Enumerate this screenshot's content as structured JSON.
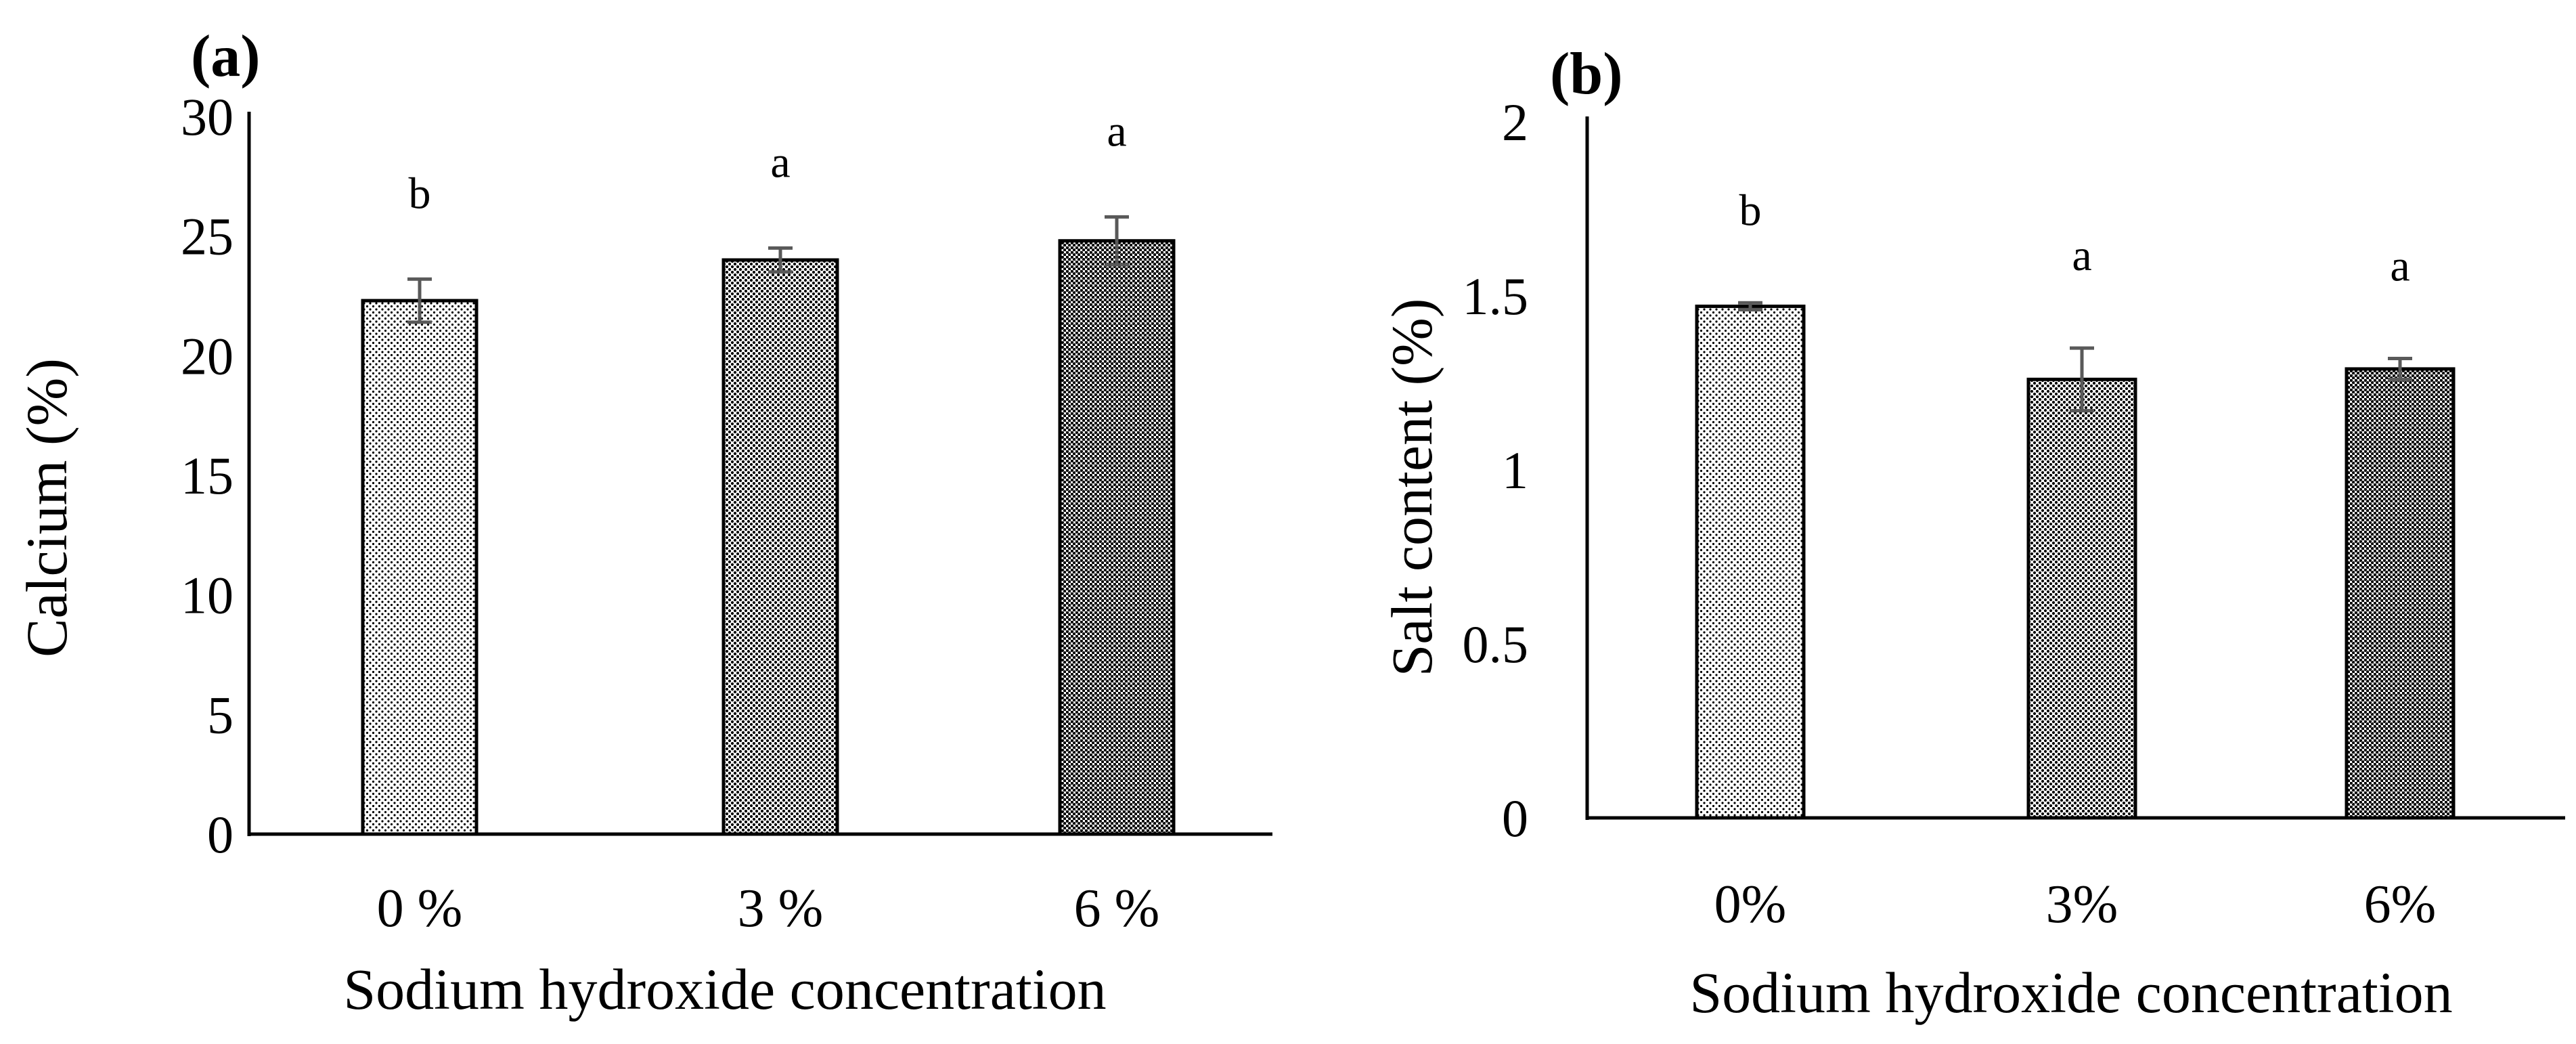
{
  "chart_data": [
    {
      "type": "bar",
      "panel_label": "(a)",
      "categories": [
        "0 %",
        "3 %",
        "6 %"
      ],
      "values": [
        22.3,
        24.0,
        24.8
      ],
      "errors": [
        0.9,
        0.5,
        1.0
      ],
      "significance": [
        "b",
        "a",
        "a"
      ],
      "xlabel": "Sodium hydroxide concentration",
      "ylabel": "Calcium (%)",
      "ylim": [
        0,
        30
      ],
      "yticks": [
        "0",
        "5",
        "10",
        "15",
        "20",
        "25",
        "30"
      ],
      "patterns": [
        "dots-light",
        "dots-medium",
        "dots-dense"
      ],
      "grid": false
    },
    {
      "type": "bar",
      "panel_label": "(b)",
      "categories": [
        "0%",
        "3%",
        "6%"
      ],
      "values": [
        1.47,
        1.26,
        1.29
      ],
      "errors": [
        0.01,
        0.09,
        0.03
      ],
      "significance": [
        "b",
        "a",
        "a"
      ],
      "xlabel": "Sodium hydroxide concentration",
      "ylabel": "Salt content  (%)",
      "ylim": [
        0,
        2
      ],
      "yticks": [
        "0",
        "0.5",
        "1",
        "1.5",
        "2"
      ],
      "patterns": [
        "dots-light",
        "dots-medium",
        "dots-dense"
      ],
      "grid": false
    }
  ],
  "colors": {
    "axis": "#000000",
    "bar_edge": "#000000",
    "error_bar": "#595959",
    "pattern_dot": "#000000",
    "background": "#ffffff"
  }
}
